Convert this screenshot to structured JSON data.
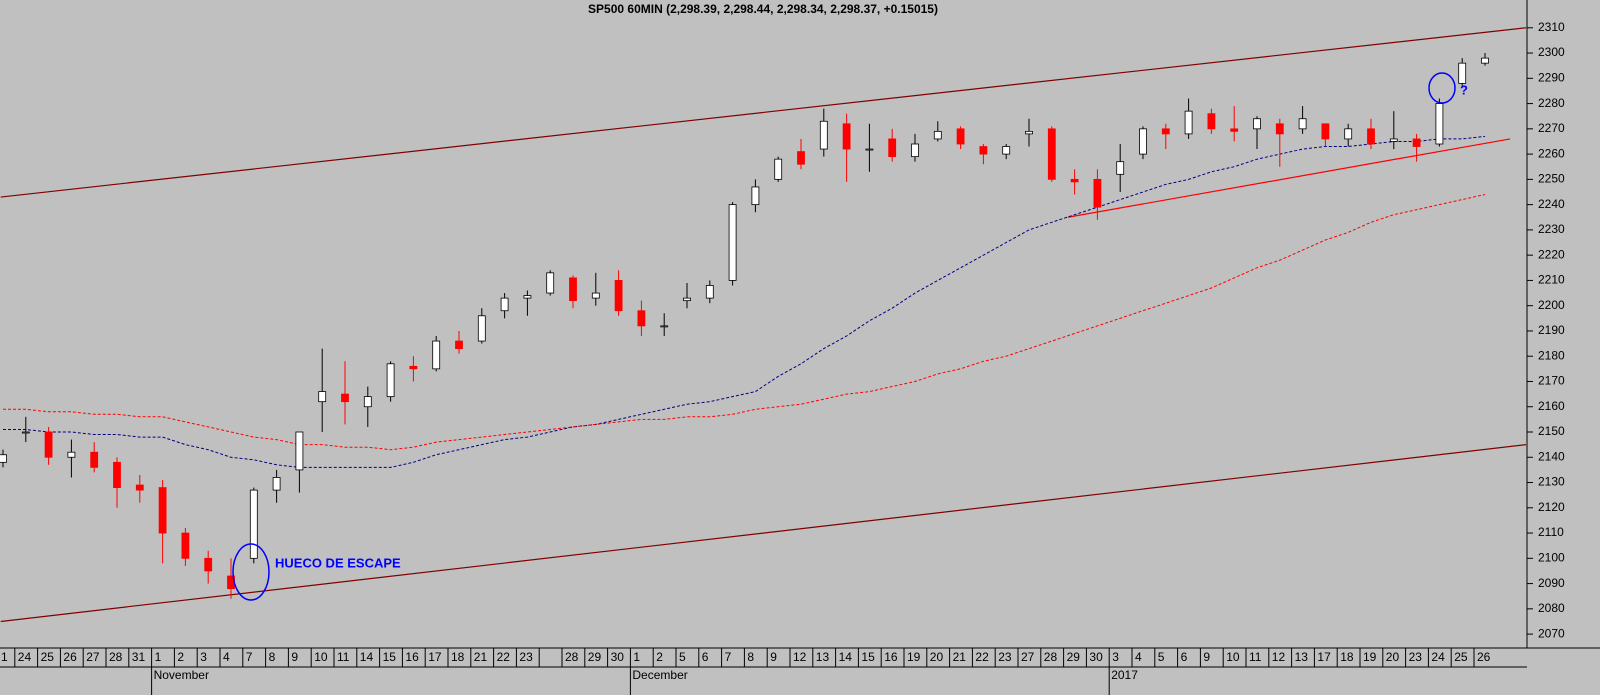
{
  "chart_data": {
    "type": "candlestick",
    "title": "SP500 60MIN (2,298.39, 2,298.44, 2,298.34, 2,298.37, +0.15015)",
    "categories": [
      "1",
      "24",
      "25",
      "26",
      "27",
      "28",
      "31",
      "1",
      "2",
      "3",
      "4",
      "7",
      "8",
      "9",
      "10",
      "11",
      "14",
      "15",
      "16",
      "17",
      "18",
      "21",
      "22",
      "23",
      null,
      "28",
      "29",
      "30",
      "1",
      "2",
      "5",
      "6",
      "7",
      "8",
      "9",
      "12",
      "13",
      "14",
      "15",
      "16",
      "19",
      "20",
      "21",
      "22",
      "23",
      "27",
      "28",
      "29",
      "30",
      "3",
      "4",
      "5",
      "6",
      "9",
      "10",
      "11",
      "12",
      "13",
      "17",
      "18",
      "19",
      "20",
      "23",
      "24",
      "25",
      "26"
    ],
    "month_labels": [
      null,
      null,
      null,
      null,
      null,
      null,
      null,
      "November",
      null,
      null,
      null,
      null,
      null,
      null,
      null,
      null,
      null,
      null,
      null,
      null,
      null,
      null,
      null,
      null,
      null,
      null,
      null,
      null,
      "December",
      null,
      null,
      null,
      null,
      null,
      null,
      null,
      null,
      null,
      null,
      null,
      null,
      null,
      null,
      null,
      null,
      null,
      null,
      null,
      null,
      "2017",
      null,
      null,
      null,
      null,
      null,
      null,
      null,
      null,
      null,
      null,
      null,
      null,
      null,
      null,
      null,
      null
    ],
    "open": [
      2138,
      2150,
      2150,
      2140,
      2142,
      2138,
      2129,
      2128,
      2110,
      2100,
      2093,
      2100,
      2127,
      2135,
      2162,
      2165,
      2160,
      2164,
      2176,
      2175,
      2186,
      2186,
      2198,
      2203,
      2205,
      2211,
      2203,
      2210,
      2198,
      2192,
      2202,
      2203,
      2210,
      2240,
      2250,
      2261,
      2262,
      2272,
      2262,
      2266,
      2259,
      2266,
      2270,
      2263,
      2260,
      2268,
      2270,
      2250,
      2250,
      2252,
      2260,
      2270,
      2268,
      2276,
      2270,
      2270,
      2272,
      2270,
      2272,
      2266,
      2270,
      2265,
      2266,
      2264,
      2288,
      2296
    ],
    "high": [
      2143,
      2156,
      2152,
      2147,
      2146,
      2140,
      2133,
      2131,
      2112,
      2103,
      2100,
      2128,
      2135,
      2150,
      2183,
      2178,
      2168,
      2178,
      2180,
      2188,
      2190,
      2199,
      2205,
      2206,
      2214,
      2212,
      2213,
      2214,
      2202,
      2197,
      2209,
      2210,
      2241,
      2250,
      2259,
      2266,
      2278,
      2276,
      2272,
      2270,
      2268,
      2273,
      2271,
      2264,
      2264,
      2274,
      2271,
      2254,
      2254,
      2264,
      2271,
      2272,
      2282,
      2278,
      2279,
      2275,
      2274,
      2279,
      2272,
      2272,
      2274,
      2277,
      2268,
      2282,
      2298,
      2300
    ],
    "low": [
      2136,
      2146,
      2137,
      2132,
      2134,
      2120,
      2122,
      2098,
      2097,
      2090,
      2084,
      2098,
      2122,
      2126,
      2150,
      2153,
      2152,
      2162,
      2170,
      2174,
      2181,
      2185,
      2195,
      2196,
      2204,
      2199,
      2200,
      2196,
      2188,
      2188,
      2199,
      2201,
      2208,
      2237,
      2249,
      2254,
      2259,
      2249,
      2253,
      2257,
      2257,
      2265,
      2262,
      2256,
      2258,
      2263,
      2249,
      2244,
      2234,
      2245,
      2258,
      2262,
      2266,
      2268,
      2265,
      2262,
      2255,
      2268,
      2263,
      2263,
      2262,
      2262,
      2257,
      2263,
      2287,
      2295
    ],
    "close": [
      2141,
      2150,
      2140,
      2142,
      2136,
      2128,
      2127,
      2110,
      2100,
      2095,
      2088,
      2127,
      2132,
      2150,
      2166,
      2162,
      2164,
      2177,
      2175,
      2186,
      2183,
      2196,
      2203,
      2204,
      2213,
      2202,
      2205,
      2198,
      2192,
      2192,
      2203,
      2208,
      2240,
      2247,
      2258,
      2256,
      2273,
      2262,
      2262,
      2259,
      2264,
      2269,
      2264,
      2260,
      2263,
      2269,
      2250,
      2249,
      2239,
      2257,
      2270,
      2268,
      2277,
      2270,
      2269,
      2274,
      2268,
      2274,
      2266,
      2270,
      2264,
      2266,
      2263,
      2280,
      2296,
      2298
    ],
    "up_color": "#ffffff",
    "down_color": "#ff0000",
    "background": "#c0c0c0",
    "ylim": [
      2064.5,
      2321
    ],
    "yticks": [
      2070,
      2080,
      2090,
      2100,
      2110,
      2120,
      2130,
      2140,
      2150,
      2160,
      2170,
      2180,
      2190,
      2200,
      2210,
      2220,
      2230,
      2240,
      2250,
      2260,
      2270,
      2280,
      2290,
      2300,
      2310
    ],
    "overlays": [
      {
        "color": "#000080",
        "values": [
          2151,
          2151,
          2150,
          2150,
          2149,
          2149,
          2148,
          2148,
          2145,
          2143,
          2140,
          2139,
          2137,
          2136,
          2136,
          2136,
          2136,
          2136,
          2138,
          2141,
          2143,
          2145,
          2147,
          2148,
          2150,
          2152,
          2153,
          2155,
          2157,
          2159,
          2161,
          2162,
          2164,
          2166,
          2172,
          2177,
          2183,
          2188,
          2194,
          2199,
          2205,
          2210,
          2215,
          2220,
          2225,
          2230,
          2233,
          2236,
          2239,
          2242,
          2245,
          2248,
          2250,
          2253,
          2255,
          2258,
          2260,
          2262,
          2263,
          2263,
          2264,
          2265,
          2265,
          2266,
          2266,
          2267
        ]
      },
      {
        "color": "#ff0000",
        "values": [
          2159,
          2159,
          2158,
          2158,
          2157,
          2157,
          2156,
          2156,
          2154,
          2152,
          2150,
          2148,
          2147,
          2145,
          2145,
          2144,
          2144,
          2143,
          2144,
          2146,
          2147,
          2148,
          2149,
          2150,
          2151,
          2152,
          2153,
          2154,
          2155,
          2155,
          2156,
          2156,
          2157,
          2159,
          2160,
          2161,
          2163,
          2165,
          2166,
          2168,
          2170,
          2173,
          2175,
          2178,
          2180,
          2183,
          2186,
          2189,
          2192,
          2195,
          2198,
          2201,
          2204,
          2207,
          2211,
          2215,
          2218,
          2222,
          2226,
          2229,
          2233,
          2236,
          2238,
          2240,
          2242,
          2244
        ]
      }
    ],
    "trendlines": [
      {
        "color": "#800000",
        "x": [
          -0.1,
          66.8
        ],
        "values": [
          2243,
          2310
        ]
      },
      {
        "color": "#800000",
        "x": [
          -0.1,
          66.8
        ],
        "values": [
          2075,
          2145
        ]
      },
      {
        "color": "#ff0000",
        "x": [
          46.7,
          66.1
        ],
        "values": [
          2235,
          2266
        ]
      }
    ],
    "annotations": [
      {
        "text": "HUECO DE ESCAPE",
        "color": "#0000ff"
      },
      {
        "text": "?",
        "color": "#0000ff"
      }
    ]
  }
}
